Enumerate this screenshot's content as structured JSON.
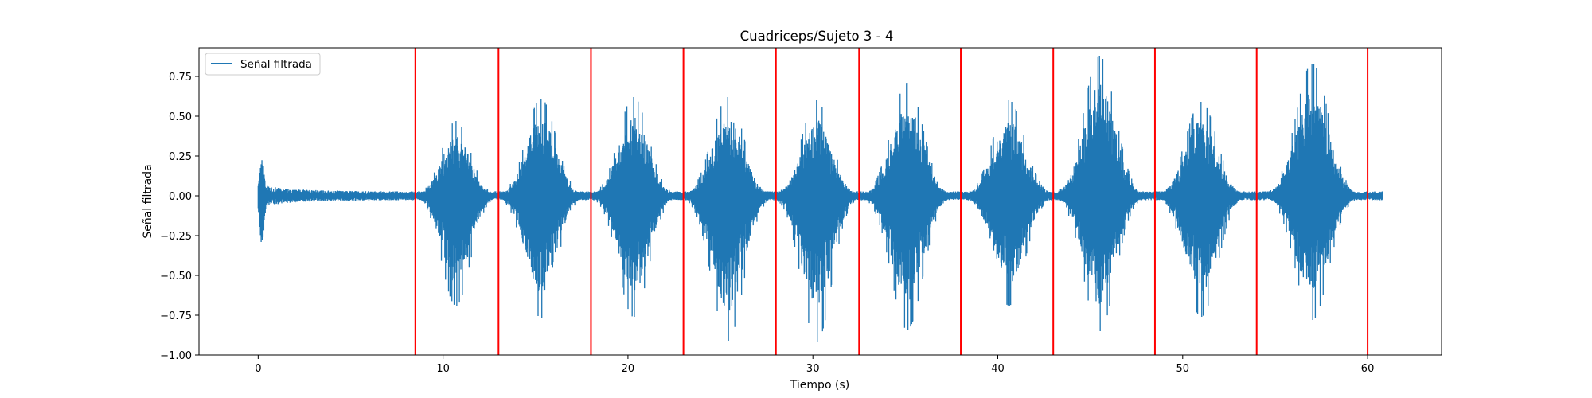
{
  "chart_data": {
    "type": "line",
    "title": "Cuadriceps/Sujeto 3 - 4",
    "xlabel": "Tiempo (s)",
    "ylabel": "Señal filtrada",
    "xlim": [
      -3.2,
      64
    ],
    "ylim": [
      -1.0,
      0.93
    ],
    "x_ticks": [
      0,
      10,
      20,
      30,
      40,
      50,
      60
    ],
    "x_tick_labels": [
      "0",
      "10",
      "20",
      "30",
      "40",
      "50",
      "60"
    ],
    "y_ticks": [
      -1.0,
      -0.75,
      -0.5,
      -0.25,
      0.0,
      0.25,
      0.5,
      0.75
    ],
    "y_tick_labels": [
      "−1.00",
      "−0.75",
      "−0.50",
      "−0.25",
      "0.00",
      "0.25",
      "0.50",
      "0.75"
    ],
    "grid": false,
    "legend": {
      "placement": "top-left",
      "entries": [
        "Señal filtrada"
      ]
    },
    "series": [
      {
        "name": "Señal filtrada",
        "color": "#1f77b4",
        "x_range": [
          0,
          60.8
        ],
        "baseline_amplitude": 0.02,
        "onset_transient": {
          "x": 0.2,
          "max": 0.23,
          "min": -0.31
        },
        "bursts": [
          {
            "center": 10.7,
            "width": 3.9,
            "max": 0.47,
            "min": -0.69
          },
          {
            "center": 15.3,
            "width": 4.1,
            "max": 0.61,
            "min": -0.77
          },
          {
            "center": 20.3,
            "width": 4.1,
            "max": 0.62,
            "min": -0.76
          },
          {
            "center": 25.4,
            "width": 4.3,
            "max": 0.62,
            "min": -0.91
          },
          {
            "center": 30.2,
            "width": 4.1,
            "max": 0.6,
            "min": -0.92
          },
          {
            "center": 35.1,
            "width": 4.3,
            "max": 0.71,
            "min": -0.84
          },
          {
            "center": 40.6,
            "width": 4.3,
            "max": 0.6,
            "min": -0.69
          },
          {
            "center": 45.5,
            "width": 4.3,
            "max": 0.88,
            "min": -0.85
          },
          {
            "center": 51.0,
            "width": 4.3,
            "max": 0.59,
            "min": -0.76
          },
          {
            "center": 57.0,
            "width": 4.5,
            "max": 0.83,
            "min": -0.78
          }
        ]
      }
    ],
    "vertical_lines": {
      "color": "#ff0000",
      "x": [
        8.5,
        13.0,
        18.0,
        23.0,
        28.0,
        32.5,
        38.0,
        43.0,
        48.5,
        54.0,
        60.0
      ]
    }
  }
}
